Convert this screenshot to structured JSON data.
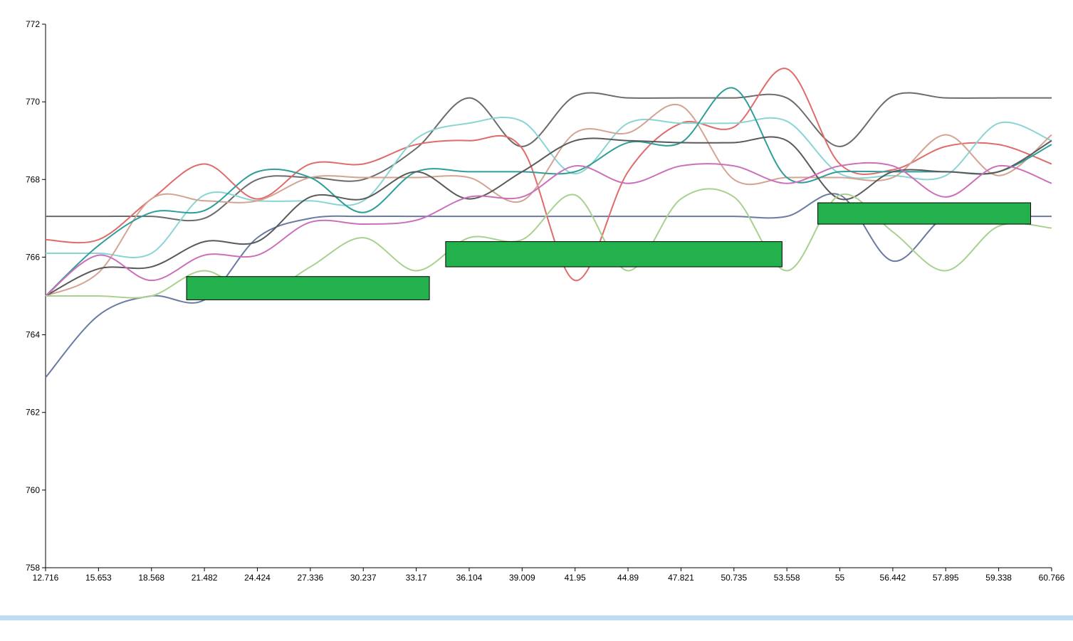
{
  "chart_data": {
    "type": "line",
    "title": "",
    "xlabel": "",
    "ylabel": "",
    "x_ticks": [
      "12.716",
      "15.653",
      "18.568",
      "21.482",
      "24.424",
      "27.336",
      "30.237",
      "33.17",
      "36.104",
      "39.009",
      "41.95",
      "44.89",
      "47.821",
      "50.735",
      "53.558",
      "55",
      "56.442",
      "57.895",
      "59.338",
      "60.766"
    ],
    "y_ticks": [
      "772",
      "770",
      "768",
      "766",
      "764",
      "762",
      "760",
      "758"
    ],
    "ylim": [
      758,
      772
    ],
    "grid": false,
    "legend": "none",
    "series": [
      {
        "color": "#6a7aa3",
        "values": [
          762.9,
          764.5,
          765.0,
          764.9,
          766.5,
          767.0,
          767.05,
          767.05,
          767.05,
          767.05,
          767.05,
          767.05,
          767.05,
          767.05,
          767.05,
          767.6,
          765.9,
          767.05,
          767.05,
          767.05
        ]
      },
      {
        "color": "#6b6b6b",
        "values": [
          767.05,
          767.05,
          767.05,
          767.0,
          768.0,
          768.05,
          768.0,
          768.8,
          770.1,
          768.85,
          770.15,
          770.1,
          770.1,
          770.1,
          770.1,
          768.85,
          770.15,
          770.1,
          770.1,
          770.1
        ]
      },
      {
        "color": "#e06b6b",
        "values": [
          766.45,
          766.45,
          767.5,
          768.4,
          767.5,
          768.4,
          768.4,
          768.9,
          769.0,
          768.8,
          765.4,
          768.2,
          769.45,
          769.35,
          770.85,
          768.4,
          768.25,
          768.85,
          768.9,
          768.4
        ]
      },
      {
        "color": "#8ad5d3",
        "values": [
          766.1,
          766.1,
          766.1,
          767.6,
          767.45,
          767.45,
          767.45,
          769.05,
          769.45,
          769.5,
          768.15,
          769.45,
          769.45,
          769.45,
          769.5,
          768.15,
          768.1,
          768.1,
          769.45,
          769.0
        ]
      },
      {
        "color": "#d4a392",
        "values": [
          765.0,
          765.6,
          767.5,
          767.45,
          767.45,
          768.05,
          768.05,
          768.05,
          768.05,
          767.45,
          769.2,
          769.2,
          769.9,
          768.0,
          768.05,
          768.05,
          768.05,
          769.15,
          768.1,
          769.15
        ]
      },
      {
        "color": "#2e9e98",
        "values": [
          765.0,
          766.3,
          767.15,
          767.2,
          768.2,
          768.05,
          767.15,
          768.2,
          768.2,
          768.2,
          768.2,
          768.95,
          768.95,
          770.35,
          768.05,
          768.2,
          768.2,
          768.2,
          768.2,
          768.9
        ]
      },
      {
        "color": "#5a5a5a",
        "values": [
          765.0,
          765.7,
          765.75,
          766.4,
          766.4,
          767.55,
          767.5,
          768.2,
          767.5,
          768.2,
          769.0,
          769.0,
          768.95,
          768.95,
          769.0,
          767.5,
          768.2,
          768.2,
          768.2,
          769.0
        ]
      },
      {
        "color": "#cc6fba",
        "values": [
          765.0,
          766.05,
          765.4,
          766.05,
          766.05,
          766.9,
          766.85,
          766.95,
          767.55,
          767.55,
          768.35,
          767.9,
          768.35,
          768.35,
          767.9,
          768.35,
          768.35,
          767.55,
          768.35,
          767.9
        ]
      },
      {
        "color": "#a9d18e",
        "values": [
          765.0,
          765.0,
          765.0,
          765.65,
          765.0,
          765.75,
          766.5,
          765.65,
          766.5,
          766.45,
          767.6,
          765.65,
          767.5,
          767.55,
          765.65,
          767.6,
          766.65,
          765.65,
          766.8,
          766.75
        ]
      }
    ],
    "annotation_boxes": [
      {
        "x_start": 20.5,
        "x_end": 33.9,
        "y_low": 764.9,
        "y_high": 765.5,
        "color": "#22b14c"
      },
      {
        "x_start": 34.8,
        "x_end": 53.3,
        "y_low": 765.75,
        "y_high": 766.4,
        "color": "#22b14c"
      },
      {
        "x_start": 54.4,
        "x_end": 60.2,
        "y_low": 766.85,
        "y_high": 767.4,
        "color": "#22b14c"
      }
    ]
  },
  "colors": {
    "axis": "#000000",
    "annotation_fill": "#22b14c",
    "bottom_bar": "#bfdcf5"
  }
}
